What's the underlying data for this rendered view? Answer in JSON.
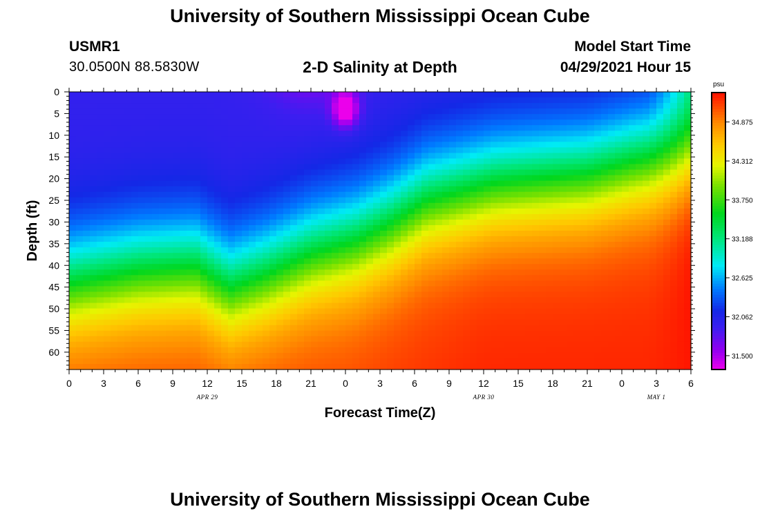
{
  "header": {
    "title": "University of Southern Mississippi Ocean Cube",
    "station_id": "USMR1",
    "station_coords": "30.0500N  88.5830W",
    "model_start_label": "Model Start Time",
    "model_start_value": "04/29/2021 Hour 15"
  },
  "footer": {
    "title": "University of Southern Mississippi Ocean Cube"
  },
  "chart_data": {
    "type": "heatmap",
    "title": "2-D Salinity at Depth",
    "xlabel": "Forecast Time(Z)",
    "ylabel": "Depth (ft)",
    "x_range_hours": [
      0,
      54
    ],
    "y_range_ft": [
      0,
      64
    ],
    "x_ticks": [
      "0",
      "3",
      "6",
      "9",
      "12",
      "15",
      "18",
      "21",
      "0",
      "3",
      "6",
      "9",
      "12",
      "15",
      "18",
      "21",
      "0",
      "3",
      "6"
    ],
    "y_ticks": [
      "0",
      "5",
      "10",
      "15",
      "20",
      "25",
      "30",
      "35",
      "40",
      "45",
      "50",
      "55",
      "60"
    ],
    "date_labels": [
      {
        "label": "APR 29",
        "hour": 12
      },
      {
        "label": "APR 30",
        "hour": 36
      },
      {
        "label": "MAY 1",
        "hour": 51
      }
    ],
    "colorbar": {
      "unit": "psu",
      "min": 31.3,
      "max": 35.3,
      "labels": [
        "34.875",
        "34.312",
        "33.750",
        "33.188",
        "32.625",
        "32.062",
        "31.500"
      ]
    },
    "interface_depth_ft": [
      {
        "hour": 0,
        "depth": 44
      },
      {
        "hour": 6,
        "depth": 41
      },
      {
        "hour": 11,
        "depth": 40
      },
      {
        "hour": 14,
        "depth": 45
      },
      {
        "hour": 17,
        "depth": 42
      },
      {
        "hour": 21,
        "depth": 37
      },
      {
        "hour": 25,
        "depth": 34
      },
      {
        "hour": 28,
        "depth": 30
      },
      {
        "hour": 31,
        "depth": 25
      },
      {
        "hour": 34,
        "depth": 23
      },
      {
        "hour": 37,
        "depth": 21
      },
      {
        "hour": 41,
        "depth": 20
      },
      {
        "hour": 45,
        "depth": 19
      },
      {
        "hour": 49,
        "depth": 16
      },
      {
        "hour": 54,
        "depth": 13
      }
    ]
  }
}
